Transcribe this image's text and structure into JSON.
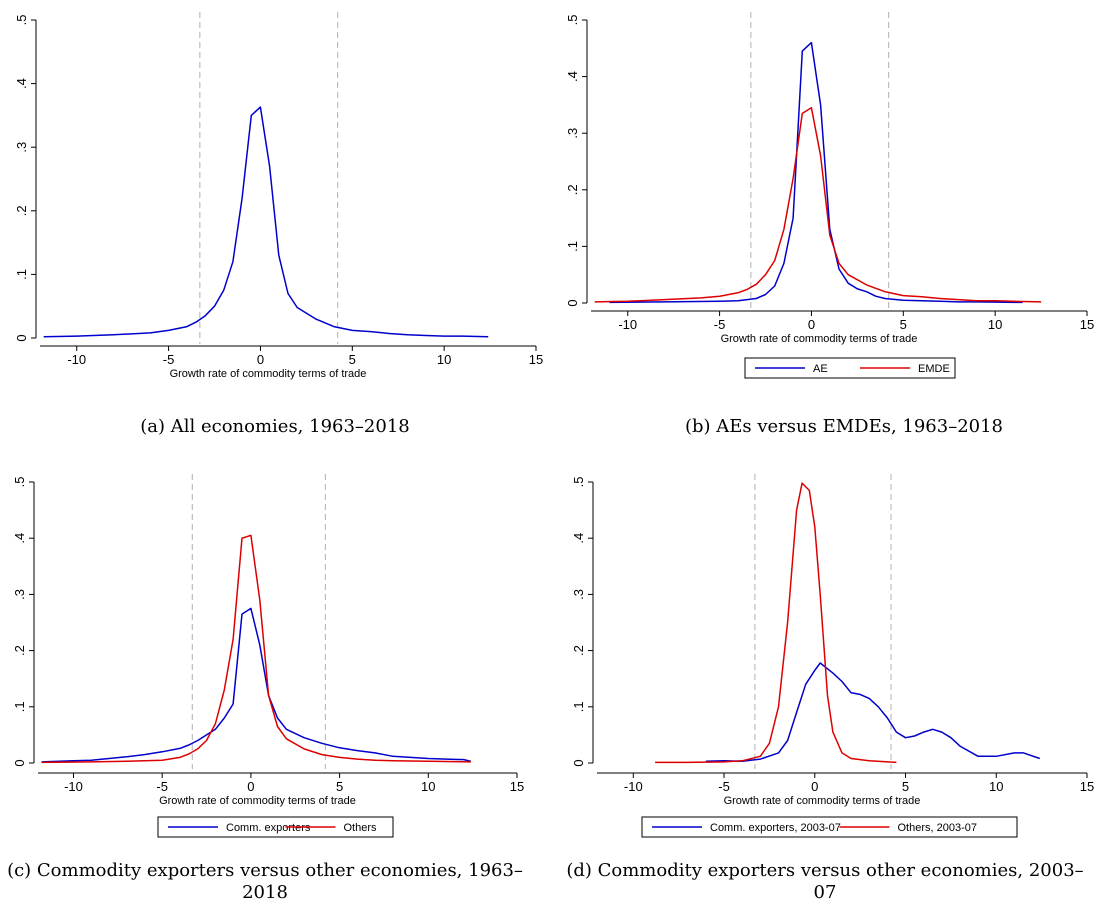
{
  "chart_data": [
    {
      "type": "line",
      "id": "a",
      "caption": "(a) All economies, 1963–2018",
      "xlabel": "Growth rate of commodity terms of trade",
      "xticks": [
        "-10",
        "-5",
        "0",
        "5",
        "10",
        "15"
      ],
      "yticks": [
        "0",
        ".1",
        ".2",
        ".3",
        ".4",
        ".5"
      ],
      "xlim": [
        -12,
        15
      ],
      "ylim": [
        0,
        0.5
      ],
      "vlines": [
        -3.3,
        4.2
      ],
      "legend": [],
      "series": [
        {
          "color": "#0000cc",
          "points": [
            [
              -11.8,
              0.002
            ],
            [
              -10,
              0.003
            ],
            [
              -8,
              0.005
            ],
            [
              -6,
              0.008
            ],
            [
              -5,
              0.012
            ],
            [
              -4,
              0.018
            ],
            [
              -3.5,
              0.025
            ],
            [
              -3,
              0.035
            ],
            [
              -2.5,
              0.05
            ],
            [
              -2,
              0.075
            ],
            [
              -1.5,
              0.12
            ],
            [
              -1,
              0.22
            ],
            [
              -0.5,
              0.35
            ],
            [
              0,
              0.363
            ],
            [
              0.5,
              0.27
            ],
            [
              1,
              0.13
            ],
            [
              1.5,
              0.07
            ],
            [
              2,
              0.048
            ],
            [
              3,
              0.03
            ],
            [
              4,
              0.018
            ],
            [
              5,
              0.012
            ],
            [
              6,
              0.01
            ],
            [
              7,
              0.007
            ],
            [
              8,
              0.005
            ],
            [
              9,
              0.004
            ],
            [
              10,
              0.003
            ],
            [
              11,
              0.003
            ],
            [
              12.4,
              0.002
            ]
          ]
        }
      ]
    },
    {
      "type": "line",
      "id": "b",
      "caption": "(b) AEs versus EMDEs, 1963–2018",
      "xlabel": "Growth rate of commodity terms of trade",
      "xticks": [
        "-10",
        "-5",
        "0",
        "5",
        "10",
        "15"
      ],
      "yticks": [
        "0",
        ".1",
        ".2",
        ".3",
        ".4",
        ".5"
      ],
      "xlim": [
        -12,
        15
      ],
      "ylim": [
        0,
        0.5
      ],
      "vlines": [
        -3.3,
        4.2
      ],
      "legend": [
        "AE",
        "EMDE"
      ],
      "series": [
        {
          "name": "AE",
          "color": "#0000cc",
          "points": [
            [
              -11,
              0.001
            ],
            [
              -8,
              0.002
            ],
            [
              -5,
              0.003
            ],
            [
              -4,
              0.004
            ],
            [
              -3,
              0.008
            ],
            [
              -2.5,
              0.015
            ],
            [
              -2,
              0.03
            ],
            [
              -1.5,
              0.07
            ],
            [
              -1,
              0.15
            ],
            [
              -0.5,
              0.445
            ],
            [
              0,
              0.46
            ],
            [
              0.5,
              0.35
            ],
            [
              1,
              0.13
            ],
            [
              1.5,
              0.06
            ],
            [
              2,
              0.035
            ],
            [
              2.5,
              0.025
            ],
            [
              3,
              0.02
            ],
            [
              3.5,
              0.012
            ],
            [
              4,
              0.008
            ],
            [
              5,
              0.005
            ],
            [
              6,
              0.004
            ],
            [
              7,
              0.003
            ],
            [
              8,
              0.002
            ],
            [
              9,
              0.002
            ],
            [
              11.5,
              0.001
            ]
          ]
        },
        {
          "name": "EMDE",
          "color": "#dd0000",
          "points": [
            [
              -11.8,
              0.002
            ],
            [
              -10,
              0.003
            ],
            [
              -8,
              0.006
            ],
            [
              -6,
              0.009
            ],
            [
              -5,
              0.012
            ],
            [
              -4,
              0.018
            ],
            [
              -3.5,
              0.024
            ],
            [
              -3,
              0.033
            ],
            [
              -2.5,
              0.05
            ],
            [
              -2,
              0.075
            ],
            [
              -1.5,
              0.13
            ],
            [
              -1,
              0.22
            ],
            [
              -0.5,
              0.335
            ],
            [
              0,
              0.345
            ],
            [
              0.5,
              0.26
            ],
            [
              1,
              0.12
            ],
            [
              1.5,
              0.07
            ],
            [
              2,
              0.05
            ],
            [
              3,
              0.032
            ],
            [
              4,
              0.02
            ],
            [
              5,
              0.013
            ],
            [
              6,
              0.011
            ],
            [
              7,
              0.008
            ],
            [
              8,
              0.006
            ],
            [
              9,
              0.004
            ],
            [
              10,
              0.004
            ],
            [
              11,
              0.003
            ],
            [
              12.5,
              0.002
            ]
          ]
        }
      ]
    },
    {
      "type": "line",
      "id": "c",
      "caption": "(c) Commodity exporters versus other economies, 1963–2018",
      "xlabel": "Growth rate of commodity terms of trade",
      "xticks": [
        "-10",
        "-5",
        "0",
        "5",
        "10",
        "15"
      ],
      "yticks": [
        "0",
        ".1",
        ".2",
        ".3",
        ".4",
        ".5"
      ],
      "xlim": [
        -12,
        15
      ],
      "ylim": [
        0,
        0.5
      ],
      "vlines": [
        -3.3,
        4.2
      ],
      "legend": [
        "Comm. exporters",
        "Others"
      ],
      "series": [
        {
          "name": "Comm. exporters",
          "color": "#0000cc",
          "points": [
            [
              -11.8,
              0.002
            ],
            [
              -10,
              0.004
            ],
            [
              -9,
              0.005
            ],
            [
              -8,
              0.008
            ],
            [
              -7,
              0.011
            ],
            [
              -6,
              0.015
            ],
            [
              -5,
              0.02
            ],
            [
              -4,
              0.026
            ],
            [
              -3.5,
              0.032
            ],
            [
              -3,
              0.04
            ],
            [
              -2,
              0.06
            ],
            [
              -1.5,
              0.08
            ],
            [
              -1,
              0.105
            ],
            [
              -0.5,
              0.265
            ],
            [
              0,
              0.275
            ],
            [
              0.5,
              0.21
            ],
            [
              1,
              0.12
            ],
            [
              1.5,
              0.08
            ],
            [
              2,
              0.06
            ],
            [
              3,
              0.045
            ],
            [
              4,
              0.035
            ],
            [
              5,
              0.027
            ],
            [
              6,
              0.022
            ],
            [
              7,
              0.018
            ],
            [
              8,
              0.012
            ],
            [
              9,
              0.01
            ],
            [
              10,
              0.008
            ],
            [
              11,
              0.007
            ],
            [
              12,
              0.006
            ],
            [
              12.4,
              0.003
            ]
          ]
        },
        {
          "name": "Others",
          "color": "#dd0000",
          "points": [
            [
              -11.8,
              0.001
            ],
            [
              -9,
              0.002
            ],
            [
              -7,
              0.003
            ],
            [
              -5,
              0.005
            ],
            [
              -4,
              0.01
            ],
            [
              -3.5,
              0.016
            ],
            [
              -3,
              0.025
            ],
            [
              -2.5,
              0.04
            ],
            [
              -2,
              0.07
            ],
            [
              -1.5,
              0.13
            ],
            [
              -1,
              0.22
            ],
            [
              -0.5,
              0.4
            ],
            [
              0,
              0.405
            ],
            [
              0.5,
              0.29
            ],
            [
              1,
              0.12
            ],
            [
              1.5,
              0.065
            ],
            [
              2,
              0.043
            ],
            [
              3,
              0.025
            ],
            [
              4,
              0.015
            ],
            [
              5,
              0.01
            ],
            [
              6,
              0.007
            ],
            [
              7,
              0.005
            ],
            [
              8,
              0.004
            ],
            [
              10,
              0.003
            ],
            [
              12.4,
              0.002
            ]
          ]
        }
      ]
    },
    {
      "type": "line",
      "id": "d",
      "caption": "(d) Commodity exporters versus other economies, 2003–07",
      "xlabel": "Growth rate of commodity terms of trade",
      "xticks": [
        "-10",
        "-5",
        "0",
        "5",
        "10",
        "15"
      ],
      "yticks": [
        "0",
        ".1",
        ".2",
        ".3",
        ".4",
        ".5"
      ],
      "xlim": [
        -12,
        15
      ],
      "ylim": [
        0,
        0.5
      ],
      "vlines": [
        -3.3,
        4.2
      ],
      "legend": [
        "Comm. exporters, 2003-07",
        "Others, 2003-07"
      ],
      "series": [
        {
          "name": "Comm. exporters, 2003-07",
          "color": "#0000cc",
          "points": [
            [
              -6,
              0.003
            ],
            [
              -5,
              0.004
            ],
            [
              -4,
              0.003
            ],
            [
              -3,
              0.007
            ],
            [
              -2,
              0.018
            ],
            [
              -1.5,
              0.04
            ],
            [
              -1,
              0.09
            ],
            [
              -0.5,
              0.14
            ],
            [
              0,
              0.165
            ],
            [
              0.3,
              0.178
            ],
            [
              1,
              0.16
            ],
            [
              1.5,
              0.145
            ],
            [
              2,
              0.125
            ],
            [
              2.5,
              0.122
            ],
            [
              3,
              0.115
            ],
            [
              3.5,
              0.1
            ],
            [
              4,
              0.08
            ],
            [
              4.5,
              0.055
            ],
            [
              5,
              0.045
            ],
            [
              5.5,
              0.048
            ],
            [
              6,
              0.055
            ],
            [
              6.5,
              0.06
            ],
            [
              7,
              0.055
            ],
            [
              7.5,
              0.045
            ],
            [
              8,
              0.03
            ],
            [
              9,
              0.012
            ],
            [
              10,
              0.012
            ],
            [
              11,
              0.018
            ],
            [
              11.5,
              0.018
            ],
            [
              12.4,
              0.008
            ]
          ]
        },
        {
          "name": "Others, 2003-07",
          "color": "#dd0000",
          "points": [
            [
              -8.8,
              0.001
            ],
            [
              -7,
              0.001
            ],
            [
              -5,
              0.002
            ],
            [
              -4,
              0.004
            ],
            [
              -3,
              0.012
            ],
            [
              -2.5,
              0.035
            ],
            [
              -2,
              0.1
            ],
            [
              -1.5,
              0.25
            ],
            [
              -1,
              0.45
            ],
            [
              -0.7,
              0.498
            ],
            [
              -0.3,
              0.485
            ],
            [
              0,
              0.42
            ],
            [
              0.3,
              0.3
            ],
            [
              0.7,
              0.12
            ],
            [
              1,
              0.055
            ],
            [
              1.5,
              0.018
            ],
            [
              2,
              0.008
            ],
            [
              3,
              0.004
            ],
            [
              4.5,
              0.001
            ]
          ]
        }
      ]
    }
  ]
}
